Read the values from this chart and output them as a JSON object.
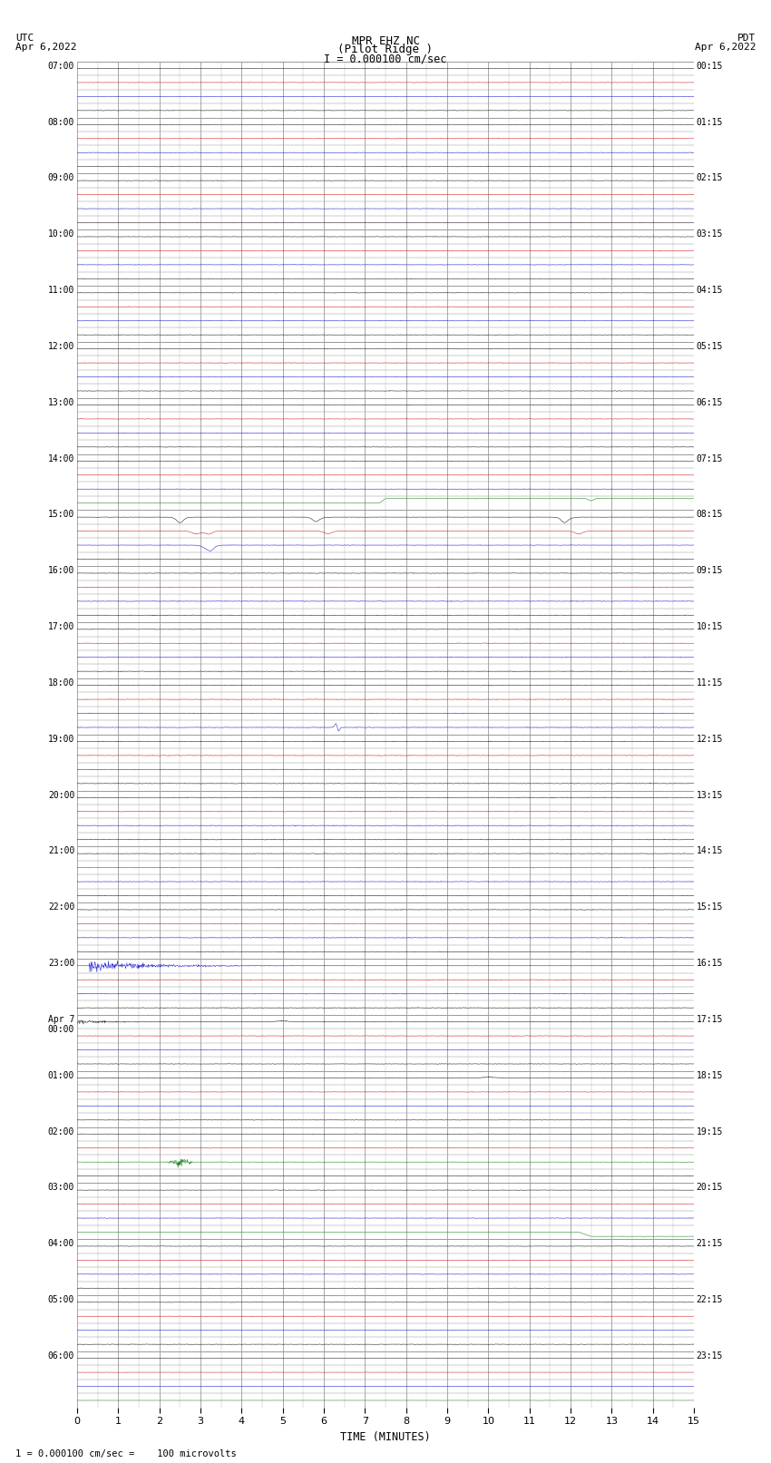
{
  "title_line1": "MPR EHZ NC",
  "title_line2": "(Pilot Ridge )",
  "title_scale": "I = 0.000100 cm/sec",
  "left_label_line1": "UTC",
  "left_label_line2": "Apr 6,2022",
  "right_label_line1": "PDT",
  "right_label_line2": "Apr 6,2022",
  "xlabel": "TIME (MINUTES)",
  "footer": "1 = 0.000100 cm/sec =    100 microvolts",
  "bg_color": "#ffffff",
  "grid_color": "#999999",
  "trace_color_black": "#000000",
  "trace_color_blue": "#0000cc",
  "trace_color_red": "#cc0000",
  "trace_color_green": "#007700",
  "utc_labels": [
    "07:00",
    "08:00",
    "09:00",
    "10:00",
    "11:00",
    "12:00",
    "13:00",
    "14:00",
    "15:00",
    "16:00",
    "17:00",
    "18:00",
    "19:00",
    "20:00",
    "21:00",
    "22:00",
    "23:00",
    "Apr 7\n00:00",
    "01:00",
    "02:00",
    "03:00",
    "04:00",
    "05:00",
    "06:00"
  ],
  "pdt_labels": [
    "00:15",
    "01:15",
    "02:15",
    "03:15",
    "04:15",
    "05:15",
    "06:15",
    "07:15",
    "08:15",
    "09:15",
    "10:15",
    "11:15",
    "12:15",
    "13:15",
    "14:15",
    "15:15",
    "16:15",
    "17:15",
    "18:15",
    "19:15",
    "20:15",
    "21:15",
    "22:15",
    "23:15"
  ],
  "n_rows": 24,
  "sub_rows": 4,
  "minutes": 15,
  "xmin": 0,
  "xmax": 15
}
